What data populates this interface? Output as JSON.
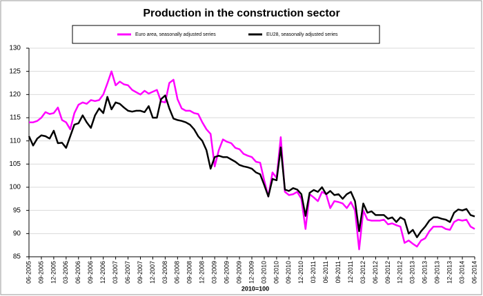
{
  "chart_data": {
    "type": "line",
    "title": "Production in the construction sector",
    "x_label": "2010=100",
    "categories": [
      "06-2005",
      null,
      null,
      "09-2005",
      null,
      null,
      "12-2005",
      null,
      null,
      "03-2006",
      null,
      null,
      "06-2006",
      null,
      null,
      "09-2006",
      null,
      null,
      "12-2006",
      null,
      null,
      "03-2007",
      null,
      null,
      "06-2007",
      null,
      null,
      "09-2007",
      null,
      null,
      "12-2007",
      null,
      null,
      "03-2008",
      null,
      null,
      "06-2008",
      null,
      null,
      "09-2008",
      null,
      null,
      "12-2008",
      null,
      null,
      "03-2009",
      null,
      null,
      "06-2009",
      null,
      null,
      "09-2009",
      null,
      null,
      "12-2009",
      null,
      null,
      "03-2010",
      null,
      null,
      "06-2010",
      null,
      null,
      "09-2010",
      null,
      null,
      "12-2010",
      null,
      null,
      "03-2011",
      null,
      null,
      "06-2011",
      null,
      null,
      "09-2011",
      null,
      null,
      "12-2011",
      null,
      null,
      "03-2012",
      null,
      null,
      "06-2012",
      null,
      null,
      "09-2012",
      null,
      null,
      "12-2012",
      null,
      null,
      "03-2013",
      null,
      null,
      "06-2013",
      null,
      null,
      "09-2013",
      null,
      null,
      "12-2013",
      null,
      null,
      "03-2014",
      null,
      null,
      "06-2014"
    ],
    "series": [
      {
        "name": "Euro area, seasonally adjusted series",
        "color": "#ff00ff",
        "values": [
          114,
          114,
          114.3,
          115,
          116.2,
          115.8,
          116,
          117.2,
          114.5,
          114,
          112.5,
          116,
          117.8,
          118.3,
          118,
          118.8,
          118.6,
          118.8,
          120,
          122.4,
          125,
          122,
          122.8,
          122.2,
          122,
          121,
          120.5,
          120,
          120.8,
          120.2,
          120.6,
          121,
          118.5,
          118.3,
          122.5,
          123.2,
          119,
          117,
          116.5,
          116.5,
          116,
          115.8,
          114,
          112.5,
          111.5,
          104.5,
          108,
          110.3,
          109.8,
          109.5,
          108.5,
          108.2,
          107.2,
          106.8,
          106.5,
          105.5,
          105.3,
          101.5,
          98,
          103.2,
          102,
          110.8,
          99,
          98.3,
          98.5,
          99,
          97.5,
          91,
          98.5,
          97.8,
          97,
          99,
          98.5,
          95.5,
          97,
          96.8,
          96.5,
          95.5,
          96.8,
          95,
          86.6,
          95,
          93,
          92.8,
          92.8,
          92.8,
          93,
          92,
          92.2,
          91.8,
          91.5,
          88,
          88.5,
          87.8,
          87.2,
          88.5,
          89,
          90.5,
          91.5,
          91.5,
          91.5,
          91,
          90.8,
          92.5,
          93,
          92.8,
          93,
          91.5,
          91
        ]
      },
      {
        "name": "EU28, seasonally adjusted series",
        "color": "#000000",
        "values": [
          111,
          109,
          110.5,
          111.2,
          111,
          110.5,
          112.2,
          109.5,
          109.6,
          108.5,
          111,
          113.5,
          113.8,
          115.5,
          114,
          112.8,
          115.5,
          117,
          116,
          119.5,
          116.8,
          118.3,
          118,
          117.2,
          116.5,
          116.3,
          116.5,
          116.5,
          116.2,
          117.5,
          115,
          115,
          119,
          119.8,
          117,
          114.8,
          114.5,
          114.3,
          114,
          113.5,
          112.5,
          111,
          110,
          108,
          104,
          106.5,
          106.8,
          106.5,
          106.5,
          106,
          105.5,
          104.8,
          104.5,
          104.3,
          104,
          103.2,
          102.8,
          100.5,
          98,
          101.8,
          101.5,
          108.6,
          99.5,
          99.2,
          99.8,
          99.5,
          98.5,
          93.8,
          98.8,
          99.4,
          99,
          100,
          98.5,
          99.2,
          98.3,
          98.5,
          97.5,
          98.5,
          99,
          97,
          90.5,
          96.5,
          94.5,
          94.8,
          94,
          94,
          94,
          93.2,
          93.5,
          92.5,
          93.5,
          93,
          90,
          90.8,
          89.2,
          90.5,
          91.5,
          92.8,
          93.5,
          93.5,
          93.2,
          93,
          92.5,
          94.5,
          95.2,
          95,
          95.3,
          94,
          93.7
        ]
      }
    ],
    "ylim": [
      85,
      130
    ],
    "yticks": [
      85,
      90,
      95,
      100,
      105,
      110,
      115,
      120,
      125,
      130
    ],
    "grid": true
  }
}
